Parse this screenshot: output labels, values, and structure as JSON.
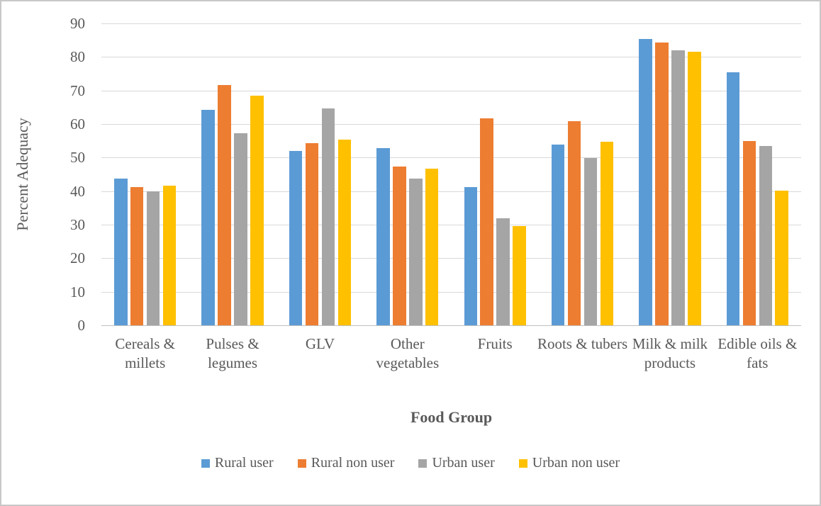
{
  "figure": {
    "border_color": "#C8C8C8",
    "background": "#FFFFFF",
    "text_color": "#595959",
    "gridline_color": "#D9D9D9",
    "axis_line_color": "#BFBFBF"
  },
  "chart_data": {
    "type": "bar",
    "title": "",
    "xlabel": "Food Group",
    "ylabel": "Percent Adequacy",
    "ylim": [
      0,
      90
    ],
    "yticks": [
      0,
      10,
      20,
      30,
      40,
      50,
      60,
      70,
      80,
      90
    ],
    "grid": true,
    "legend_position": "bottom",
    "categories": [
      "Cereals & millets",
      "Pulses & legumes",
      "GLV",
      "Other vegetables",
      "Fruits",
      "Roots & tubers",
      "Milk & milk products",
      "Edible oils & fats"
    ],
    "series": [
      {
        "name": "Rural user",
        "color": "#5B9BD5",
        "values": [
          43.7,
          64.3,
          52.0,
          52.9,
          41.2,
          53.9,
          85.3,
          75.4
        ]
      },
      {
        "name": "Rural non user",
        "color": "#ED7D31",
        "values": [
          41.1,
          71.7,
          54.3,
          47.4,
          61.7,
          60.8,
          84.2,
          54.9
        ]
      },
      {
        "name": "Urban user",
        "color": "#A5A5A5",
        "values": [
          39.9,
          57.2,
          64.6,
          43.7,
          31.9,
          49.8,
          81.9,
          53.4
        ]
      },
      {
        "name": "Urban non user",
        "color": "#FFC000",
        "values": [
          41.7,
          68.5,
          55.4,
          46.7,
          29.6,
          54.7,
          81.6,
          40.2
        ]
      }
    ]
  }
}
